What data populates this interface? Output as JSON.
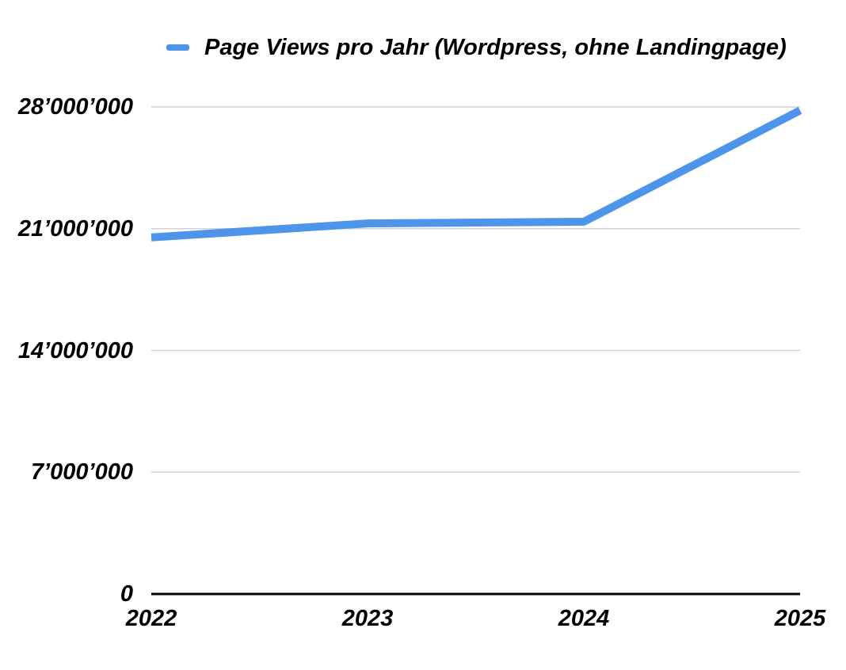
{
  "page": {
    "background": "#ffffff"
  },
  "chart_data": {
    "type": "line",
    "categories": [
      "2022",
      "2023",
      "2024",
      "2025"
    ],
    "series": [
      {
        "name": "Page Views pro Jahr (Wordpress, ohne Landingpage)",
        "values": [
          20500000,
          21300000,
          21400000,
          27800000
        ],
        "color": "#4d94eb"
      }
    ],
    "title": "",
    "xlabel": "",
    "ylabel": "",
    "ylim": [
      0,
      28000000
    ],
    "y_ticks": [
      {
        "value": 0,
        "label": "0"
      },
      {
        "value": 7000000,
        "label": "7’000’000"
      },
      {
        "value": 14000000,
        "label": "14’000’000"
      },
      {
        "value": 21000000,
        "label": "21’000’000"
      },
      {
        "value": 28000000,
        "label": "28’000’000"
      }
    ],
    "legend_position": "top",
    "grid": true,
    "gridline_color": "#d2d2d2",
    "axis_color": "#000000",
    "line_width": 10,
    "text_color": "#000000"
  }
}
